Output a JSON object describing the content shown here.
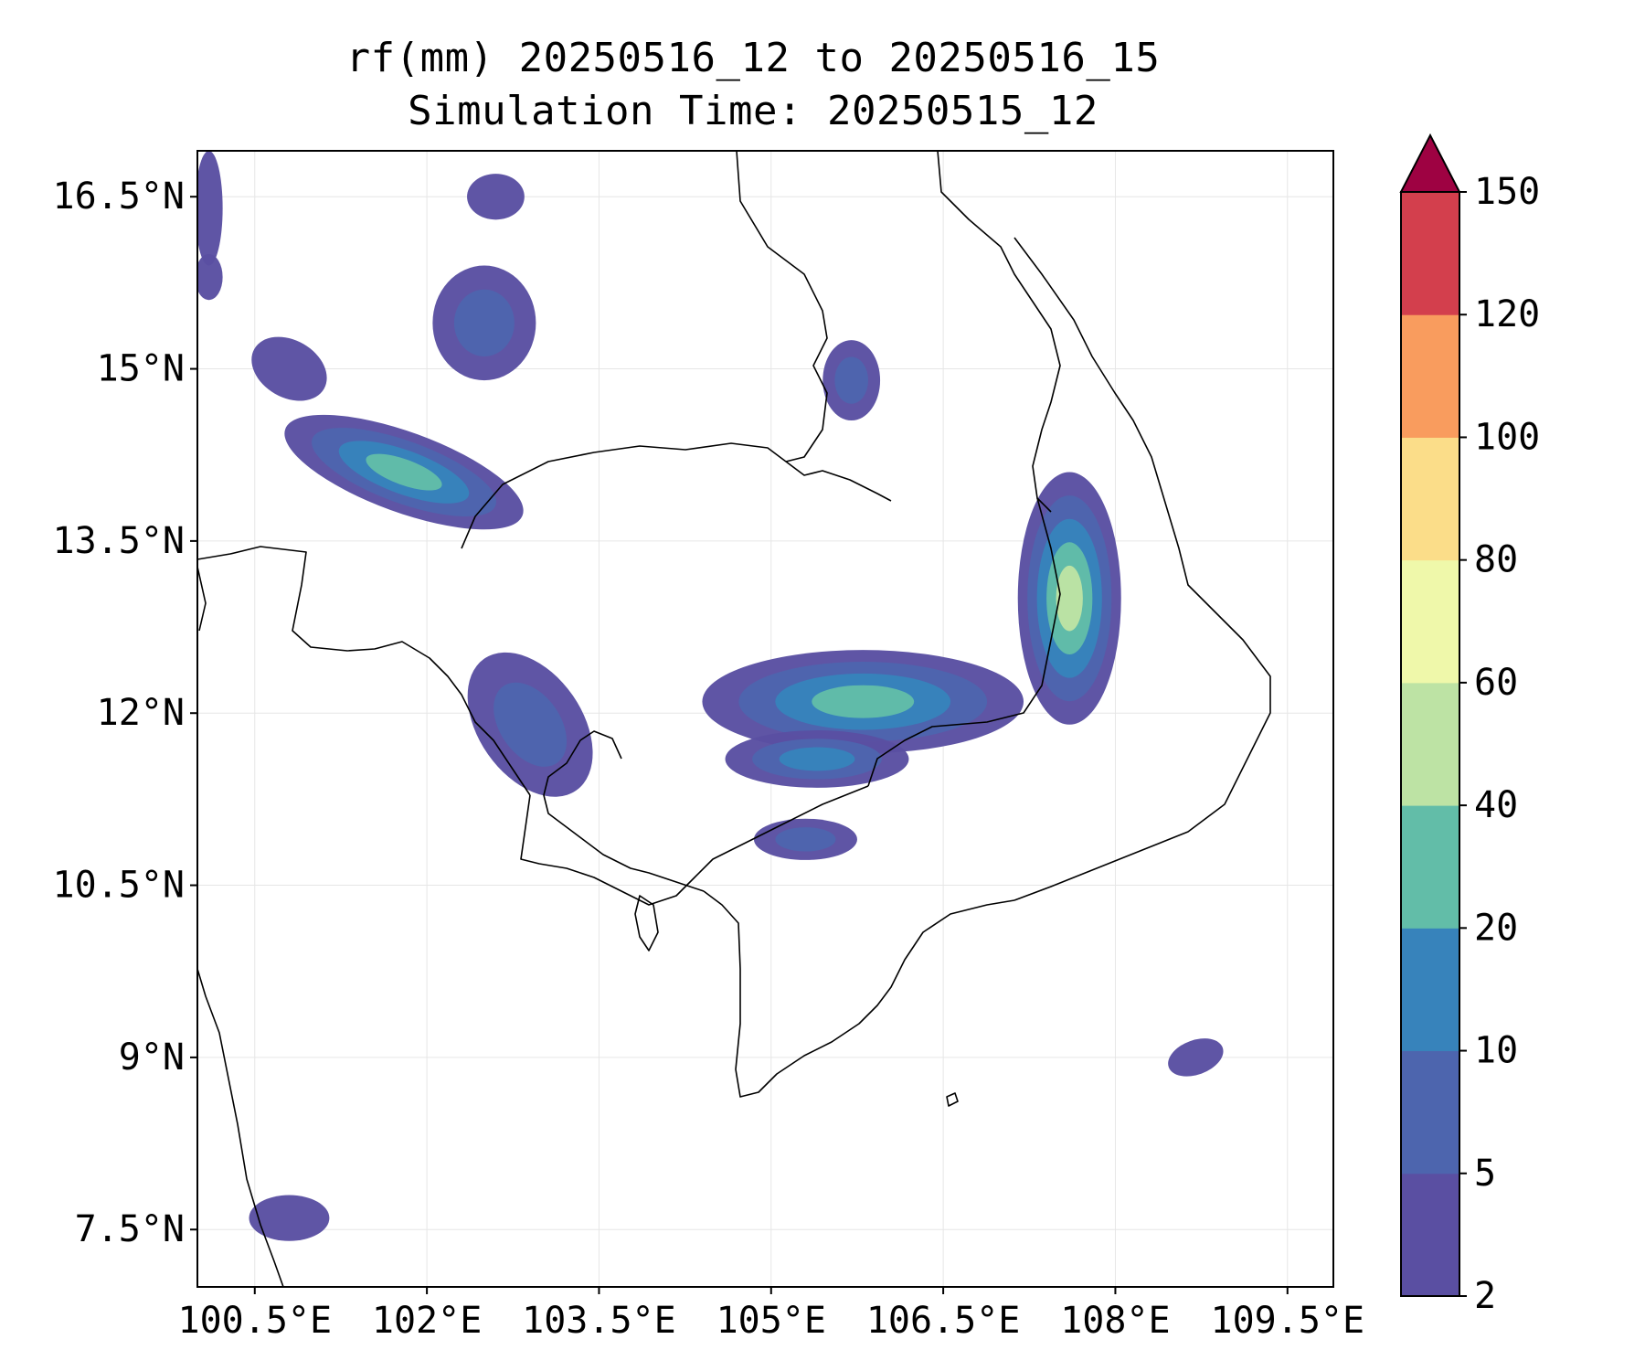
{
  "title": {
    "line1": "rf(mm) 20250516_12 to 20250516_15",
    "line2": "Simulation Time: 20250515_12"
  },
  "map": {
    "lon_range": [
      100.0,
      109.9
    ],
    "lat_range": [
      7.0,
      16.9
    ],
    "lon_ticks": [
      100.5,
      102,
      103.5,
      105,
      106.5,
      108,
      109.5
    ],
    "lon_tick_labels": [
      "100.5°E",
      "102°E",
      "103.5°E",
      "105°E",
      "106.5°E",
      "108°E",
      "109.5°E"
    ],
    "lat_ticks": [
      7.5,
      9,
      10.5,
      12,
      13.5,
      15,
      16.5
    ],
    "lat_tick_labels": [
      "7.5°N",
      "9°N",
      "10.5°N",
      "12°N",
      "13.5°N",
      "15°N",
      "16.5°N"
    ],
    "gridlines": true,
    "gridline_color": "#e6e6e6",
    "coastline_color": "#000000",
    "rain_fields": [
      {
        "region": "northwest band",
        "lon": 101.8,
        "lat": 14.1,
        "rx": 1.1,
        "ry": 0.35,
        "rot": 20,
        "peak_level": 4
      },
      {
        "region": "northwest band upper",
        "lon": 102.5,
        "lat": 15.4,
        "rx": 0.45,
        "ry": 0.5,
        "rot": 0,
        "peak_level": 2
      },
      {
        "region": "north blob",
        "lon": 102.6,
        "lat": 16.5,
        "rx": 0.25,
        "ry": 0.2,
        "rot": 0,
        "peak_level": 1
      },
      {
        "region": "left edge north",
        "lon": 100.1,
        "lat": 16.4,
        "rx": 0.12,
        "ry": 0.5,
        "rot": 0,
        "peak_level": 1
      },
      {
        "region": "left edge 15.8",
        "lon": 100.1,
        "lat": 15.8,
        "rx": 0.12,
        "ry": 0.2,
        "rot": 0,
        "peak_level": 1
      },
      {
        "region": "west arc",
        "lon": 100.8,
        "lat": 15.0,
        "rx": 0.35,
        "ry": 0.25,
        "rot": 30,
        "peak_level": 1
      },
      {
        "region": "upper laos",
        "lon": 105.7,
        "lat": 14.9,
        "rx": 0.25,
        "ry": 0.35,
        "rot": 0,
        "peak_level": 2
      },
      {
        "region": "east highlands",
        "lon": 107.6,
        "lat": 13.0,
        "rx": 0.45,
        "ry": 1.1,
        "rot": 0,
        "peak_level": 5
      },
      {
        "region": "central cambodia",
        "lon": 105.8,
        "lat": 12.1,
        "rx": 1.4,
        "ry": 0.45,
        "rot": 0,
        "peak_level": 4
      },
      {
        "region": "cambodia south",
        "lon": 105.4,
        "lat": 11.6,
        "rx": 0.8,
        "ry": 0.25,
        "rot": 0,
        "peak_level": 3
      },
      {
        "region": "southwest coast",
        "lon": 102.9,
        "lat": 11.9,
        "rx": 0.45,
        "ry": 0.7,
        "rot": -35,
        "peak_level": 2
      },
      {
        "region": "south blobs",
        "lon": 105.3,
        "lat": 10.9,
        "rx": 0.45,
        "ry": 0.18,
        "rot": 0,
        "peak_level": 2
      },
      {
        "region": "south sea",
        "lon": 108.7,
        "lat": 9.0,
        "rx": 0.25,
        "ry": 0.15,
        "rot": -20,
        "peak_level": 1
      },
      {
        "region": "southwest corner",
        "lon": 100.8,
        "lat": 7.6,
        "rx": 0.35,
        "ry": 0.2,
        "rot": 0,
        "peak_level": 1
      }
    ]
  },
  "colorbar": {
    "levels": [
      2,
      5,
      10,
      20,
      40,
      60,
      80,
      100,
      120,
      150
    ],
    "tick_labels": [
      "2",
      "5",
      "10",
      "20",
      "40",
      "60",
      "80",
      "100",
      "120",
      "150"
    ],
    "colors": [
      "#5a4fa2",
      "#4d65ae",
      "#3783bb",
      "#62bda8",
      "#bde3a4",
      "#eff8aa",
      "#fbdd89",
      "#f99c5e",
      "#d33f4d"
    ],
    "extend_color": "#9e0242",
    "extend": "max"
  }
}
